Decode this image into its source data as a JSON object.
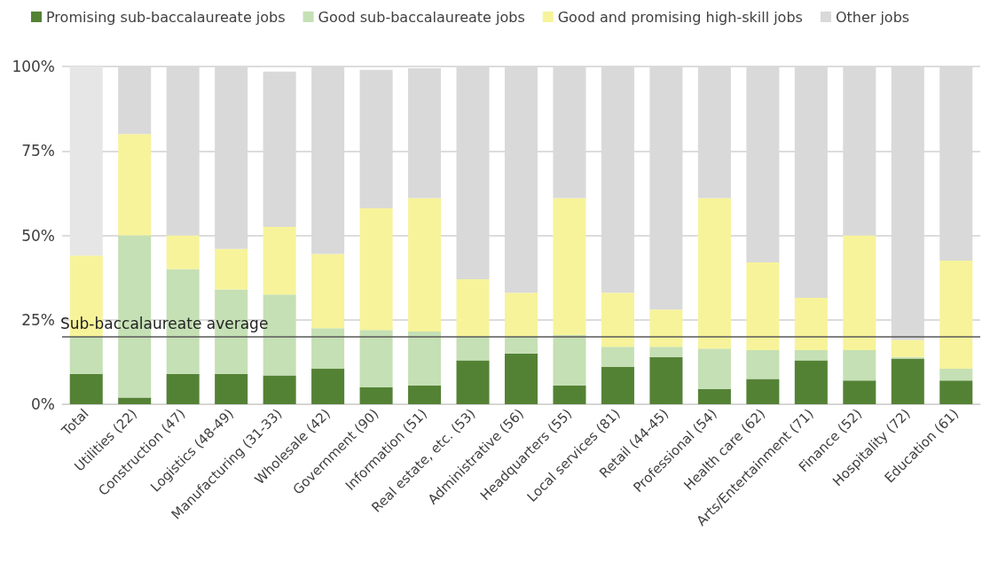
{
  "chart_data": {
    "type": "bar",
    "stacked": true,
    "categories": [
      "Total",
      "Utilities (22)",
      "Construction (47)",
      "Logistics (48-49)",
      "Manufacturing (31-33)",
      "Wholesale (42)",
      "Government (90)",
      "Information (51)",
      "Real estate, etc. (53)",
      "Administrative (56)",
      "Headquarters (55)",
      "Local services (81)",
      "Retail (44-45)",
      "Professional (54)",
      "Health care (62)",
      "Arts/Entertainment (71)",
      "Finance (52)",
      "Hospitality (72)",
      "Education (61)"
    ],
    "series": [
      {
        "name": "Promising sub-baccalaureate jobs",
        "color": "#548235",
        "values": [
          9,
          2,
          9,
          9,
          8.5,
          10.5,
          5,
          5.5,
          13,
          15,
          5.5,
          11,
          14,
          4.5,
          7.5,
          13,
          7,
          13.5,
          7
        ]
      },
      {
        "name": "Good sub-baccalaureate jobs",
        "color": "#c5e0b4",
        "values": [
          11,
          48,
          31,
          25,
          24,
          12,
          17,
          16,
          7,
          5,
          15,
          6,
          3,
          12,
          8.5,
          3,
          9,
          0.5,
          3.5
        ]
      },
      {
        "name": "Good and promising high-skill jobs",
        "color": "#f7f39a",
        "values": [
          24,
          30,
          10,
          12,
          20,
          22,
          36,
          39.5,
          17,
          13,
          40.5,
          16,
          11,
          44.5,
          26,
          15.5,
          34,
          5,
          32
        ]
      },
      {
        "name": "Other jobs",
        "color": "#d9d9d9",
        "colors": [
          "#e7e6e6",
          "#d9d9d9",
          "#d9d9d9",
          "#d9d9d9",
          "#d9d9d9",
          "#d9d9d9",
          "#d9d9d9",
          "#d9d9d9",
          "#d9d9d9",
          "#d9d9d9",
          "#d9d9d9",
          "#d9d9d9",
          "#d9d9d9",
          "#d9d9d9",
          "#d9d9d9",
          "#d9d9d9",
          "#d9d9d9",
          "#d9d9d9",
          "#d9d9d9"
        ],
        "values": [
          56,
          20,
          50,
          54,
          46,
          55.5,
          41,
          38.5,
          63,
          67,
          39,
          67,
          72,
          39,
          58,
          68.5,
          50,
          81,
          57.5
        ]
      }
    ],
    "ylim": [
      0,
      100
    ],
    "yticks": [
      {
        "value": 0,
        "label": "0%"
      },
      {
        "value": 25,
        "label": "25%"
      },
      {
        "value": 50,
        "label": "50%"
      },
      {
        "value": 75,
        "label": "75%"
      },
      {
        "value": 100,
        "label": "100%"
      }
    ],
    "grid": "y",
    "legend": "top left",
    "ref_lines": [
      {
        "axis": "y",
        "value": 20,
        "label": "Sub-baccalaureate average",
        "color": "#595959"
      }
    ]
  }
}
